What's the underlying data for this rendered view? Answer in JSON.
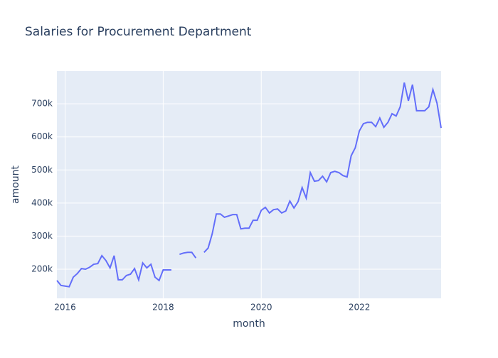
{
  "chart_data": {
    "type": "line",
    "title": "Salaries for Procurement Department",
    "x_label": "month",
    "y_label": "amount",
    "x": [
      "2015-11",
      "2015-12",
      "2016-01",
      "2016-02",
      "2016-03",
      "2016-04",
      "2016-05",
      "2016-06",
      "2016-07",
      "2016-08",
      "2016-09",
      "2016-10",
      "2016-11",
      "2016-12",
      "2017-01",
      "2017-02",
      "2017-03",
      "2017-04",
      "2017-05",
      "2017-06",
      "2017-07",
      "2017-08",
      "2017-09",
      "2017-10",
      "2017-11",
      "2017-12",
      "2018-01",
      "2018-02",
      "2018-03",
      "2018-04",
      "2018-05",
      "2018-06",
      "2018-07",
      "2018-08",
      "2018-09",
      "2018-10",
      "2018-11",
      "2018-12",
      "2019-01",
      "2019-02",
      "2019-03",
      "2019-04",
      "2019-05",
      "2019-06",
      "2019-07",
      "2019-08",
      "2019-09",
      "2019-10",
      "2019-11",
      "2019-12",
      "2020-01",
      "2020-02",
      "2020-03",
      "2020-04",
      "2020-05",
      "2020-06",
      "2020-07",
      "2020-08",
      "2020-09",
      "2020-10",
      "2020-11",
      "2020-12",
      "2021-01",
      "2021-02",
      "2021-03",
      "2021-04",
      "2021-05",
      "2021-06",
      "2021-07",
      "2021-08",
      "2021-09",
      "2021-10",
      "2021-11",
      "2021-12",
      "2022-01",
      "2022-02",
      "2022-03",
      "2022-04",
      "2022-05",
      "2022-06",
      "2022-07",
      "2022-08",
      "2022-09",
      "2022-10",
      "2022-11",
      "2022-12",
      "2023-01",
      "2023-02",
      "2023-03",
      "2023-04",
      "2023-05",
      "2023-06",
      "2023-07",
      "2023-08",
      "2023-09"
    ],
    "series": [
      {
        "name": "amount",
        "color": "#636efa",
        "values": [
          166000,
          151000,
          149000,
          147000,
          176000,
          187000,
          202000,
          200000,
          206000,
          215000,
          217000,
          241000,
          226000,
          204000,
          241000,
          168000,
          168000,
          181000,
          185000,
          202000,
          168000,
          219000,
          204000,
          215000,
          176000,
          166000,
          198000,
          198000,
          198000,
          null,
          245000,
          249000,
          251000,
          251000,
          234000,
          null,
          251000,
          264000,
          307000,
          367000,
          367000,
          357000,
          361000,
          365000,
          365000,
          322000,
          324000,
          324000,
          348000,
          348000,
          378000,
          387000,
          370000,
          380000,
          382000,
          370000,
          376000,
          406000,
          385000,
          404000,
          447000,
          415000,
          492000,
          466000,
          468000,
          481000,
          464000,
          492000,
          496000,
          492000,
          483000,
          479000,
          543000,
          567000,
          618000,
          640000,
          644000,
          644000,
          631000,
          657000,
          629000,
          644000,
          670000,
          663000,
          691000,
          764000,
          709000,
          758000,
          679000,
          679000,
          679000,
          691000,
          743000,
          702000,
          627000
        ]
      }
    ],
    "xlim": [
      "2015-11",
      "2023-09"
    ],
    "xticks": [
      "2016",
      "2018",
      "2020",
      "2022"
    ],
    "ylim": [
      112000,
      799000
    ],
    "yticks": [
      {
        "value": 200000,
        "label": "200k"
      },
      {
        "value": 300000,
        "label": "300k"
      },
      {
        "value": 400000,
        "label": "400k"
      },
      {
        "value": 500000,
        "label": "500k"
      },
      {
        "value": 600000,
        "label": "600k"
      },
      {
        "value": 700000,
        "label": "700k"
      }
    ],
    "grid": true
  }
}
